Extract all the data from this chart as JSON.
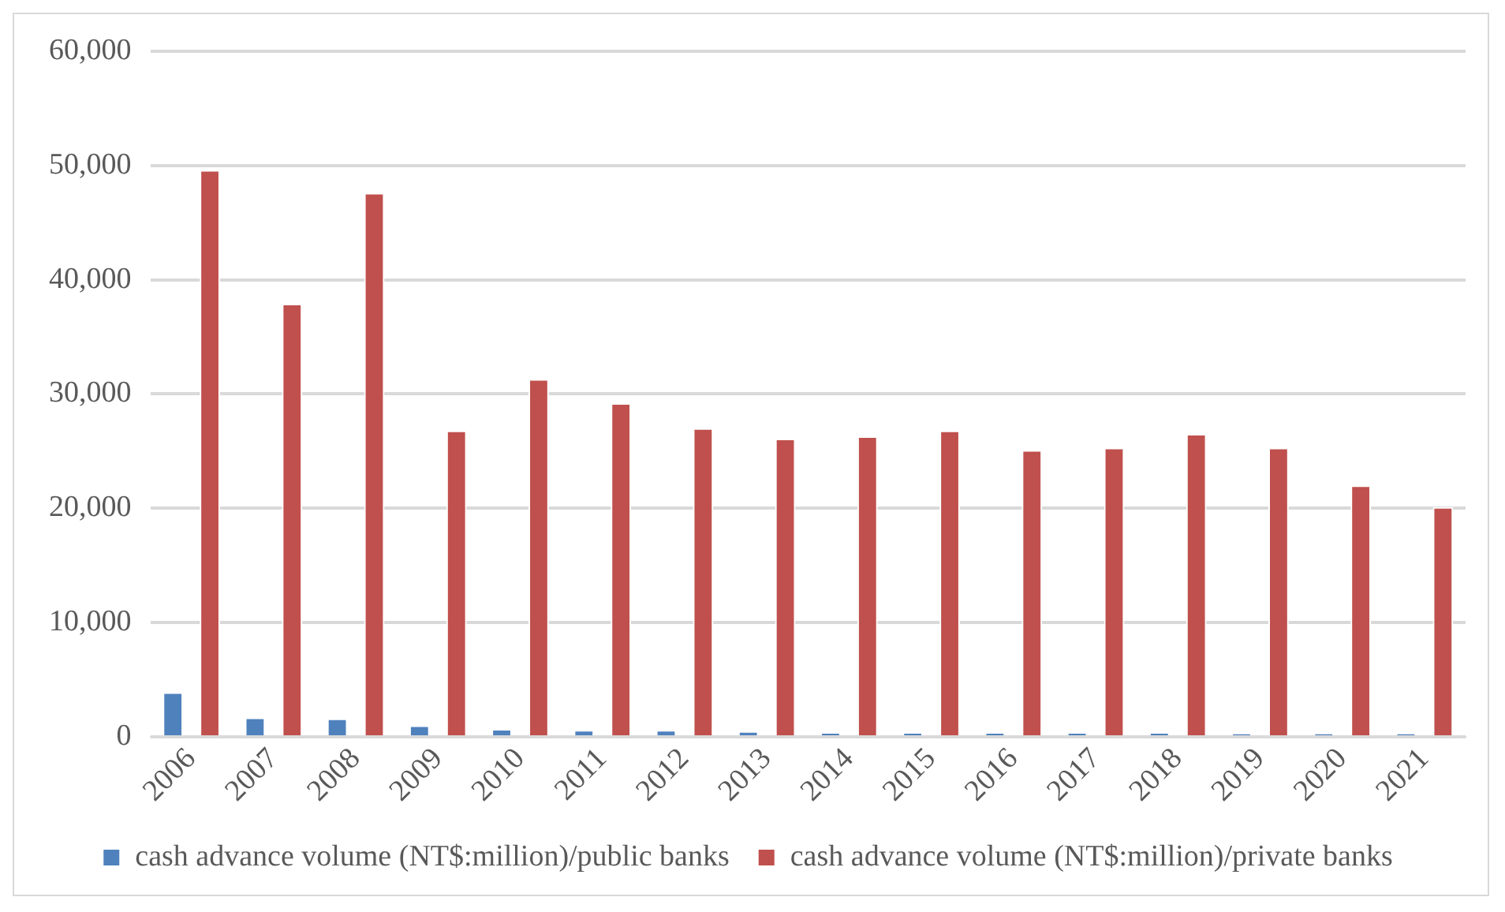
{
  "chart_data": {
    "type": "bar",
    "categories": [
      "2006",
      "2007",
      "2008",
      "2009",
      "2010",
      "2011",
      "2012",
      "2013",
      "2014",
      "2015",
      "2016",
      "2017",
      "2018",
      "2019",
      "2020",
      "2021"
    ],
    "series": [
      {
        "name": "cash advance volume (NT$:million)/public banks",
        "color": "#4f81bd",
        "values": [
          3900,
          1700,
          1600,
          1000,
          700,
          600,
          600,
          500,
          400,
          400,
          400,
          400,
          400,
          300,
          300,
          300
        ]
      },
      {
        "name": "cash advance volume (NT$:million)/private banks",
        "color": "#c0504d",
        "values": [
          49600,
          37900,
          47600,
          26800,
          31300,
          29200,
          27000,
          26100,
          26300,
          26800,
          25100,
          25300,
          26500,
          25300,
          22000,
          20100
        ]
      }
    ],
    "ylim": [
      0,
      60000
    ],
    "yticks": [
      0,
      {
        "value": 10000,
        "label": "10,000"
      },
      {
        "value": 20000,
        "label": "20,000"
      },
      {
        "value": 30000,
        "label": "30,000"
      },
      {
        "value": 40000,
        "label": "40,000"
      },
      {
        "value": 50000,
        "label": "50,000"
      },
      {
        "value": 60000,
        "label": "60,000"
      }
    ],
    "grid": "y",
    "legend": "bottom"
  }
}
